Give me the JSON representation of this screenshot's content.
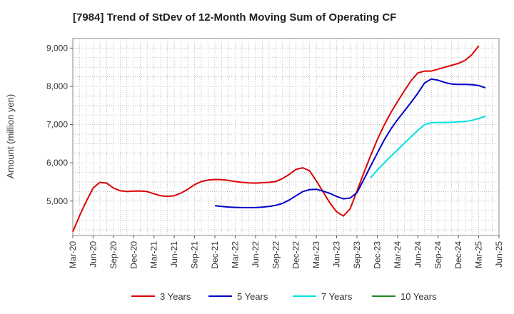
{
  "chart_data": {
    "type": "line",
    "title": "[7984]  Trend of StDev of 12-Month Moving Sum of Operating CF",
    "ylabel": "Amount (million yen)",
    "xlabel": "",
    "ylim": [
      4100,
      9250
    ],
    "yticks": [
      5000,
      6000,
      7000,
      8000,
      9000
    ],
    "ytick_labels": [
      "5,000",
      "6,000",
      "7,000",
      "8,000",
      "9,000"
    ],
    "x_start": "Mar-20",
    "x_end": "Jun-25",
    "xtick_labels": [
      "Mar-20",
      "Jun-20",
      "Sep-20",
      "Dec-20",
      "Mar-21",
      "Jun-21",
      "Sep-21",
      "Dec-21",
      "Mar-22",
      "Jun-22",
      "Sep-22",
      "Dec-22",
      "Mar-23",
      "Jun-23",
      "Sep-23",
      "Dec-23",
      "Mar-24",
      "Jun-24",
      "Sep-24",
      "Dec-24",
      "Mar-25",
      "Jun-25"
    ],
    "grid": true,
    "legend_position": "bottom",
    "series": [
      {
        "name": "3 Years",
        "color": "#dd0000",
        "start": "Mar-20",
        "values": [
          4200,
          4620,
          5000,
          5340,
          5490,
          5470,
          5340,
          5270,
          5250,
          5260,
          5265,
          5250,
          5190,
          5140,
          5120,
          5140,
          5210,
          5310,
          5430,
          5510,
          5550,
          5565,
          5560,
          5540,
          5510,
          5490,
          5475,
          5470,
          5480,
          5490,
          5510,
          5590,
          5700,
          5830,
          5870,
          5790,
          5530,
          5240,
          4950,
          4720,
          4610,
          4800,
          5260,
          5730,
          6180,
          6600,
          6980,
          7310,
          7600,
          7880,
          8150,
          8350,
          8400,
          8400,
          8450,
          8500,
          8550,
          8600,
          8680,
          8830,
          9060
        ]
      },
      {
        "name": "5 Years",
        "color": "#0000cc",
        "start": "Dec-21",
        "values": [
          4880,
          4860,
          4845,
          4835,
          4830,
          4830,
          4830,
          4840,
          4860,
          4890,
          4940,
          5030,
          5140,
          5250,
          5300,
          5310,
          5260,
          5200,
          5120,
          5060,
          5080,
          5220,
          5560,
          5910,
          6250,
          6590,
          6880,
          7130,
          7350,
          7580,
          7820,
          8090,
          8190,
          8160,
          8100,
          8060,
          8050,
          8050,
          8045,
          8020,
          7960
        ]
      },
      {
        "name": "7 Years",
        "color": "#00e0e0",
        "start": "Nov-23",
        "values": [
          5610,
          5810,
          5990,
          6170,
          6340,
          6510,
          6680,
          6850,
          7000,
          7050,
          7055,
          7055,
          7060,
          7070,
          7080,
          7110,
          7160,
          7220
        ]
      },
      {
        "name": "10 Years",
        "color": "#228b22",
        "start": "Mar-25",
        "values": []
      }
    ]
  }
}
